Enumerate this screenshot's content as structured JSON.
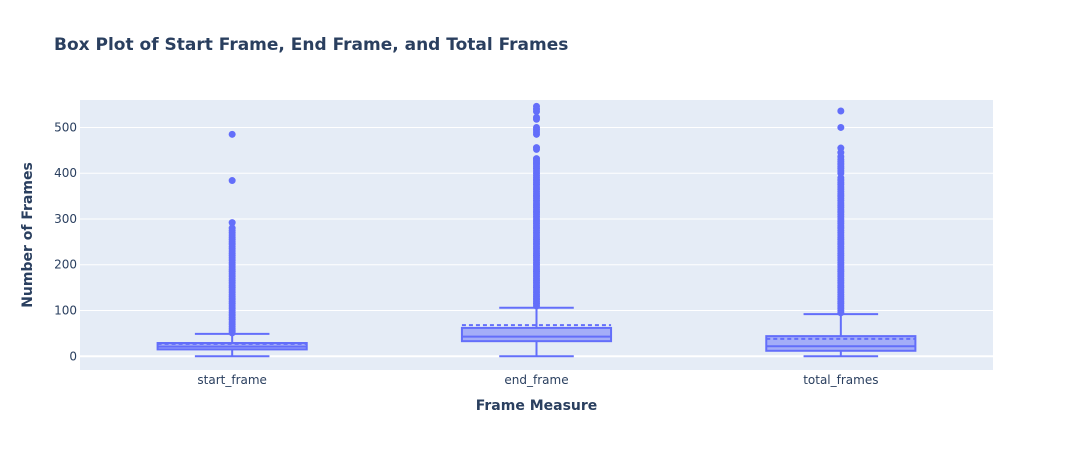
{
  "chart_data": {
    "type": "box",
    "title": "Box Plot of Start Frame, End Frame, and Total Frames",
    "xlabel": "Frame Measure",
    "ylabel": "Number of Frames",
    "categories": [
      "start_frame",
      "end_frame",
      "total_frames"
    ],
    "ylim": [
      -30,
      560
    ],
    "yticks": [
      0,
      100,
      200,
      300,
      400,
      500
    ],
    "grid": true,
    "boxmean": true,
    "boxes": [
      {
        "name": "start_frame",
        "lowerfence": 0,
        "q1": 15,
        "median": 21,
        "q3": 29,
        "upperfence": 49,
        "mean": 27,
        "outliers": [
          485,
          384,
          292,
          280,
          275,
          270,
          265,
          260,
          255,
          250,
          245,
          240,
          235,
          230,
          225,
          220,
          215,
          210,
          205,
          200,
          195,
          190,
          185,
          180,
          175,
          170,
          165,
          160,
          155,
          150,
          145,
          140,
          135,
          130,
          125,
          120,
          115,
          110,
          105,
          100,
          95,
          90,
          85,
          80,
          75,
          70,
          65,
          60,
          55,
          51
        ]
      },
      {
        "name": "end_frame",
        "lowerfence": 0,
        "q1": 33,
        "median": 43,
        "q3": 62,
        "upperfence": 106,
        "mean": 68,
        "outliers": [
          546,
          540,
          535,
          522,
          518,
          500,
          495,
          490,
          485,
          456,
          452,
          432,
          428,
          424,
          420,
          415,
          410,
          405,
          400,
          395,
          390,
          385,
          380,
          375,
          370,
          365,
          360,
          355,
          350,
          345,
          340,
          335,
          330,
          325,
          320,
          315,
          310,
          305,
          300,
          295,
          290,
          285,
          280,
          275,
          270,
          265,
          260,
          255,
          250,
          245,
          240,
          235,
          230,
          225,
          220,
          215,
          210,
          205,
          200,
          195,
          190,
          185,
          180,
          175,
          170,
          165,
          160,
          155,
          150,
          145,
          140,
          135,
          130,
          125,
          120,
          115,
          110
        ]
      },
      {
        "name": "total_frames",
        "lowerfence": 0,
        "q1": 12,
        "median": 22,
        "q3": 44,
        "upperfence": 92,
        "mean": 38,
        "outliers": [
          536,
          500,
          455,
          445,
          436,
          430,
          425,
          420,
          415,
          410,
          405,
          400,
          390,
          385,
          380,
          375,
          370,
          365,
          360,
          355,
          350,
          345,
          340,
          335,
          330,
          325,
          320,
          315,
          310,
          305,
          300,
          295,
          290,
          285,
          280,
          275,
          270,
          265,
          260,
          255,
          250,
          245,
          240,
          235,
          230,
          225,
          220,
          215,
          210,
          205,
          200,
          195,
          190,
          185,
          180,
          175,
          170,
          165,
          160,
          155,
          150,
          145,
          140,
          135,
          130,
          125,
          120,
          115,
          110,
          105,
          100,
          95
        ]
      }
    ],
    "colors": {
      "box": "#636efa",
      "box_fill": "rgba(99,110,250,0.5)",
      "plot_bg": "#e5ecf6",
      "grid": "#ffffff",
      "text": "#2a3f5f"
    }
  }
}
